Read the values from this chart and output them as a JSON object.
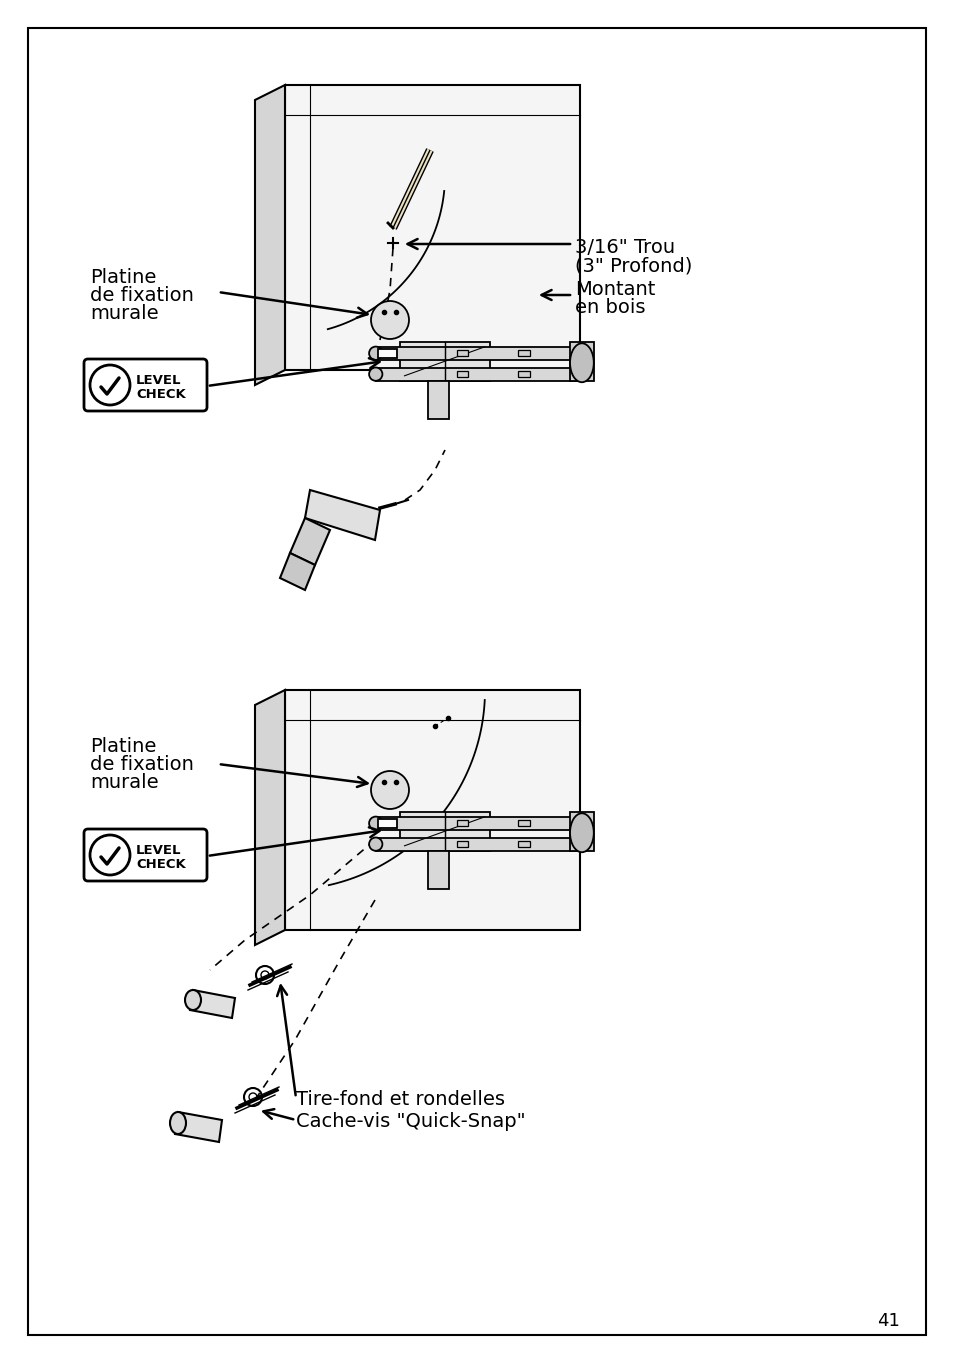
{
  "page_bg": "#ffffff",
  "border_color": "#000000",
  "text_color": "#000000",
  "page_number": "41",
  "label1_line1": "Platine",
  "label1_line2": "de fixation",
  "label1_line3": "murale",
  "label2_line1": "3/16\" Trou",
  "label2_line2": "(3\" Profond)",
  "label3_line1": "Montant",
  "label3_line2": "en bois",
  "label4_line1": "Platine",
  "label4_line2": "de fixation",
  "label4_line3": "murale",
  "label5_line1": "Tire-fond et rondelles",
  "label6_line1": "Cache-vis \"Quick-Snap\"",
  "font_size_label": 14,
  "font_size_level": 9.5,
  "font_size_page": 13
}
